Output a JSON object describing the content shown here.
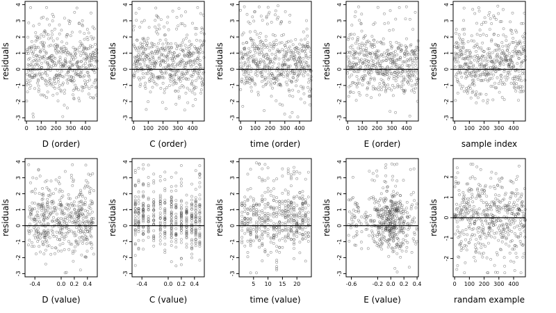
{
  "chart_data": [
    {
      "type": "scatter",
      "xlabel": "D (order)",
      "ylabel": "residuals",
      "xlim": [
        -10,
        480
      ],
      "ylim": [
        -3.2,
        4.2
      ],
      "xticks": [
        0,
        100,
        200,
        300,
        400
      ],
      "xtick_labels": [
        "0",
        "100",
        "200",
        "300",
        "400"
      ],
      "yticks": [
        -3,
        -2,
        -1,
        0,
        1,
        2,
        3,
        4
      ],
      "ytick_labels": [
        "-3",
        "-2",
        "-1",
        "0",
        "1",
        "2",
        "3",
        "4"
      ],
      "ref_line": 0,
      "x_spec": {
        "kind": "index",
        "n": 480
      },
      "y_spec": {
        "kind": "residual",
        "seed": 11
      },
      "x": [],
      "y": []
    },
    {
      "type": "scatter",
      "xlabel": "C (order)",
      "ylabel": "residuals",
      "xlim": [
        -10,
        480
      ],
      "ylim": [
        -3.2,
        4.2
      ],
      "xticks": [
        0,
        100,
        200,
        300,
        400
      ],
      "xtick_labels": [
        "0",
        "100",
        "200",
        "300",
        "400"
      ],
      "yticks": [
        -3,
        -2,
        -1,
        0,
        1,
        2,
        3,
        4
      ],
      "ytick_labels": [
        "-3",
        "-2",
        "-1",
        "0",
        "1",
        "2",
        "3",
        "4"
      ],
      "ref_line": 0,
      "x_spec": {
        "kind": "index",
        "n": 480
      },
      "y_spec": {
        "kind": "residual",
        "seed": 23
      },
      "x": [],
      "y": []
    },
    {
      "type": "scatter",
      "xlabel": "time (order)",
      "ylabel": "residuals",
      "xlim": [
        -10,
        480
      ],
      "ylim": [
        -3.2,
        4.2
      ],
      "xticks": [
        0,
        100,
        200,
        300,
        400
      ],
      "xtick_labels": [
        "0",
        "100",
        "200",
        "300",
        "400"
      ],
      "yticks": [
        -3,
        -2,
        -1,
        0,
        1,
        2,
        3,
        4
      ],
      "ytick_labels": [
        "-3",
        "-2",
        "-1",
        "0",
        "1",
        "2",
        "3",
        "4"
      ],
      "ref_line": 0,
      "x_spec": {
        "kind": "index",
        "n": 480
      },
      "y_spec": {
        "kind": "residual",
        "seed": 37
      },
      "x": [],
      "y": []
    },
    {
      "type": "scatter",
      "xlabel": "E (order)",
      "ylabel": "residuals",
      "xlim": [
        -10,
        480
      ],
      "ylim": [
        -3.2,
        4.2
      ],
      "xticks": [
        0,
        100,
        200,
        300,
        400
      ],
      "xtick_labels": [
        "0",
        "100",
        "200",
        "300",
        "400"
      ],
      "yticks": [
        -3,
        -2,
        -1,
        0,
        1,
        2,
        3,
        4
      ],
      "ytick_labels": [
        "-3",
        "-2",
        "-1",
        "0",
        "1",
        "2",
        "3",
        "4"
      ],
      "ref_line": 0,
      "x_spec": {
        "kind": "index",
        "n": 480
      },
      "y_spec": {
        "kind": "residual",
        "seed": 41
      },
      "x": [],
      "y": []
    },
    {
      "type": "scatter",
      "xlabel": "sample index",
      "ylabel": "residuals",
      "xlim": [
        -10,
        480
      ],
      "ylim": [
        -3.2,
        4.2
      ],
      "xticks": [
        0,
        100,
        200,
        300,
        400
      ],
      "xtick_labels": [
        "0",
        "100",
        "200",
        "300",
        "400"
      ],
      "yticks": [
        -3,
        -2,
        -1,
        0,
        1,
        2,
        3,
        4
      ],
      "ytick_labels": [
        "-3",
        "-2",
        "-1",
        "0",
        "1",
        "2",
        "3",
        "4"
      ],
      "ref_line": 0,
      "x_spec": {
        "kind": "index",
        "n": 480
      },
      "y_spec": {
        "kind": "residual",
        "seed": 53
      },
      "x": [],
      "y": []
    },
    {
      "type": "scatter",
      "xlabel": "D (value)",
      "ylabel": "residuals",
      "xlim": [
        -0.55,
        0.55
      ],
      "ylim": [
        -3.2,
        4.2
      ],
      "xticks": [
        -0.4,
        0,
        0.2,
        0.4
      ],
      "xtick_labels": [
        "-0.4",
        "0.0",
        "0.2",
        "0.4"
      ],
      "yticks": [
        -3,
        -2,
        -1,
        0,
        1,
        2,
        3,
        4
      ],
      "ytick_labels": [
        "-3",
        "-2",
        "-1",
        "0",
        "1",
        "2",
        "3",
        "4"
      ],
      "ref_line": 0,
      "x_spec": {
        "kind": "uniform",
        "n": 480,
        "lo": -0.5,
        "hi": 0.5,
        "seed": 61
      },
      "y_spec": {
        "kind": "residual",
        "seed": 11
      },
      "x": [],
      "y": []
    },
    {
      "type": "scatter",
      "xlabel": "C (value)",
      "ylabel": "residuals",
      "xlim": [
        -0.55,
        0.55
      ],
      "ylim": [
        -3.2,
        4.2
      ],
      "xticks": [
        -0.4,
        0,
        0.2,
        0.4
      ],
      "xtick_labels": [
        "-0.4",
        "0.0",
        "0.2",
        "0.4"
      ],
      "yticks": [
        -3,
        -2,
        -1,
        0,
        1,
        2,
        3,
        4
      ],
      "ytick_labels": [
        "-3",
        "-2",
        "-1",
        "0",
        "1",
        "2",
        "3",
        "4"
      ],
      "ref_line": 0,
      "x_spec": {
        "kind": "discrete",
        "n": 480,
        "seed": 67,
        "values": [
          -0.5,
          -0.45,
          -0.38,
          -0.3,
          -0.22,
          -0.12,
          -0.05,
          0.05,
          0.12,
          0.2,
          0.28,
          0.36,
          0.42,
          0.48
        ]
      },
      "y_spec": {
        "kind": "residual",
        "seed": 23
      },
      "x": [],
      "y": []
    },
    {
      "type": "scatter",
      "xlabel": "time (value)",
      "ylabel": "residuals",
      "xlim": [
        0,
        25
      ],
      "ylim": [
        -3.2,
        4.2
      ],
      "xticks": [
        5,
        10,
        15,
        20
      ],
      "xtick_labels": [
        "5",
        "10",
        "15",
        "20"
      ],
      "yticks": [
        -3,
        -2,
        -1,
        0,
        1,
        2,
        3,
        4
      ],
      "ytick_labels": [
        "-3",
        "-2",
        "-1",
        "0",
        "1",
        "2",
        "3",
        "4"
      ],
      "ref_line": 0,
      "x_spec": {
        "kind": "discrete",
        "n": 480,
        "seed": 71,
        "values": [
          1,
          2,
          3,
          4,
          5,
          6,
          7,
          8,
          9,
          10,
          11,
          12,
          13,
          14,
          15,
          16,
          17,
          18,
          19,
          20,
          21,
          22,
          23,
          24
        ]
      },
      "y_spec": {
        "kind": "residual",
        "seed": 37
      },
      "x": [],
      "y": []
    },
    {
      "type": "scatter",
      "xlabel": "E (value)",
      "ylabel": "residuals",
      "xlim": [
        -0.68,
        0.42
      ],
      "ylim": [
        -3.2,
        4.2
      ],
      "xticks": [
        -0.6,
        -0.2,
        0,
        0.2,
        0.4
      ],
      "xtick_labels": [
        "-0.6",
        "-0.2",
        "0.0",
        "0.2",
        "0.4"
      ],
      "yticks": [
        -3,
        -2,
        -1,
        0,
        1,
        2,
        3,
        4
      ],
      "ytick_labels": [
        "-3",
        "-2",
        "-1",
        "0",
        "1",
        "2",
        "3",
        "4"
      ],
      "ref_line": 0,
      "x_spec": {
        "kind": "centered",
        "n": 480,
        "seed": 79,
        "lo": -0.65,
        "hi": 0.4,
        "center": 0.0,
        "spread": 0.12
      },
      "y_spec": {
        "kind": "residual",
        "seed": 41
      },
      "x": [],
      "y": []
    },
    {
      "type": "scatter",
      "xlabel": "randam example",
      "ylabel": "residuals",
      "xlim": [
        -10,
        480
      ],
      "ylim": [
        -2.9,
        2.9
      ],
      "xticks": [
        0,
        100,
        200,
        300,
        400
      ],
      "xtick_labels": [
        "0",
        "100",
        "200",
        "300",
        "400"
      ],
      "yticks": [
        -2,
        -1,
        0,
        1,
        2
      ],
      "ytick_labels": [
        "-2",
        "-1",
        "0",
        "1",
        "2"
      ],
      "ref_line": 0,
      "x_spec": {
        "kind": "index",
        "n": 480
      },
      "y_spec": {
        "kind": "normal",
        "seed": 89,
        "sd": 1.05
      },
      "x": [],
      "y": []
    }
  ]
}
